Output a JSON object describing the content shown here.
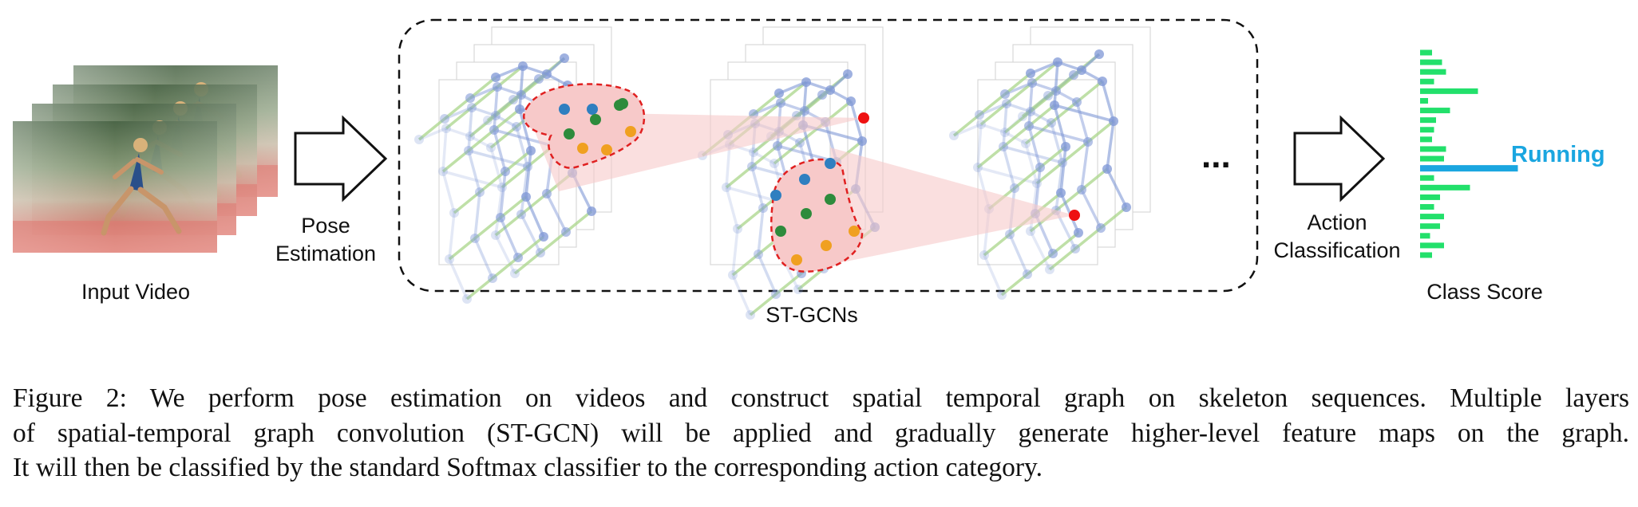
{
  "labels": {
    "input_video": "Input Video",
    "pose_estimation_line1": "Pose",
    "pose_estimation_line2": "Estimation",
    "st_gcns": "ST-GCNs",
    "ellipsis": "...",
    "action_classification_line1": "Action",
    "action_classification_line2": "Classification",
    "class_score": "Class Score",
    "running": "Running"
  },
  "caption": {
    "lines": [
      "Figure 2:  We perform pose estimation on videos and construct spatial temporal graph on skeleton sequences. Multiple layers",
      "of spatial-temporal graph convolution (ST-GCN) will be applied and gradually generate higher-level feature maps on the graph.",
      "It will then be classified by the standard Softmax classifier to the corresponding action category."
    ]
  },
  "class_scores": {
    "bars": [
      0.06,
      0.11,
      0.13,
      0.07,
      0.29,
      0.04,
      0.15,
      0.08,
      0.07,
      0.06,
      0.13,
      0.12,
      0.49,
      0.07,
      0.25,
      0.1,
      0.07,
      0.12,
      0.1,
      0.05,
      0.12,
      0.06
    ],
    "highlight_index": 12,
    "bar_color": "#22e06b",
    "highlight_color": "#1aa6e0"
  },
  "colors": {
    "skeleton_blue": "#7f97d6",
    "skeleton_green": "#a9d58a",
    "region_fill": "#f7c9c9",
    "region_outline": "#e02020",
    "joint_blue": "#2f7fc0",
    "joint_green": "#2e8b3c",
    "joint_orange": "#f0a020",
    "joint_red": "#ee1111"
  },
  "icons": {
    "video_frames": "stacked-video-frames-icon",
    "arrow": "hollow-right-arrow-icon"
  }
}
